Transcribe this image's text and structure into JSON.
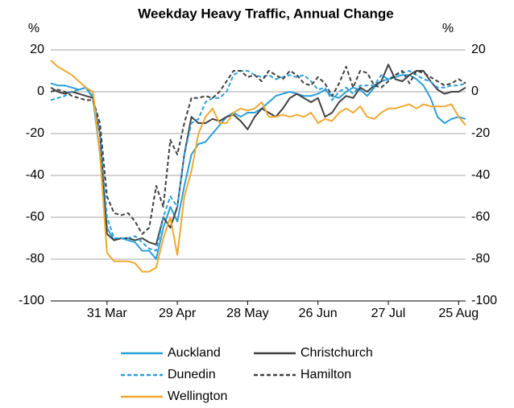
{
  "chart_data": {
    "type": "line",
    "title": "Weekday Heavy Traffic, Annual Change",
    "y_label": "%",
    "y2_label": "%",
    "categories": [
      null,
      null,
      null,
      null,
      null,
      null,
      null,
      null,
      "31 Mar",
      null,
      null,
      null,
      null,
      null,
      null,
      null,
      null,
      null,
      "29 Apr",
      null,
      null,
      null,
      null,
      null,
      null,
      null,
      null,
      null,
      "28 May",
      null,
      null,
      null,
      null,
      null,
      null,
      null,
      null,
      null,
      "26 Jun",
      null,
      null,
      null,
      null,
      null,
      null,
      null,
      null,
      null,
      "27 Jul",
      null,
      null,
      null,
      null,
      null,
      null,
      null,
      null,
      null,
      "25 Aug",
      null
    ],
    "series": [
      {
        "name": "Auckland",
        "color": "#2a9fd8",
        "dash": false,
        "values": [
          4,
          3,
          3,
          2,
          1,
          2,
          -3,
          -30,
          -65,
          -71,
          -70,
          -71,
          -72,
          -76,
          -76,
          -80,
          -65,
          -55,
          -62,
          -45,
          -30,
          -25,
          -24,
          -20,
          -16,
          -12,
          -10,
          -12,
          -10,
          -10,
          -8,
          -5,
          -2,
          -1,
          0,
          -1,
          -2,
          -2,
          -1,
          1,
          -2,
          -3,
          0,
          2,
          1,
          -2,
          2,
          5,
          6,
          7,
          8,
          8,
          6,
          3,
          -3,
          -12,
          -15,
          -13,
          -12,
          -13
        ]
      },
      {
        "name": "Christchurch",
        "color": "#404040",
        "dash": false,
        "values": [
          2,
          0,
          -1,
          0,
          -1,
          -2,
          -3,
          -20,
          -68,
          -71,
          -70,
          -70,
          -71,
          -70,
          -72,
          -73,
          -60,
          -65,
          -55,
          -30,
          -12,
          -15,
          -15,
          -13,
          -14,
          -12,
          -11,
          -14,
          -18,
          -12,
          -8,
          -10,
          -12,
          -8,
          -3,
          -1,
          -3,
          -5,
          -3,
          -12,
          -10,
          -5,
          -2,
          -3,
          2,
          0,
          3,
          5,
          13,
          6,
          5,
          8,
          10,
          10,
          5,
          1,
          -1,
          0,
          0,
          2
        ]
      },
      {
        "name": "Dunedin",
        "color": "#2a9fd8",
        "dash": true,
        "values": [
          -4,
          -3,
          -2,
          0,
          1,
          2,
          -2,
          -20,
          -60,
          -70,
          -70,
          -70,
          -69,
          -72,
          -75,
          -76,
          -60,
          -50,
          -55,
          -30,
          -15,
          -13,
          -5,
          -3,
          -3,
          0,
          8,
          10,
          10,
          8,
          7,
          8,
          6,
          7,
          8,
          7,
          8,
          5,
          1,
          2,
          -4,
          0,
          2,
          -1,
          3,
          3,
          3,
          8,
          6,
          8,
          9,
          10,
          8,
          6,
          5,
          2,
          2,
          3,
          3,
          4
        ]
      },
      {
        "name": "Hamilton",
        "color": "#404040",
        "dash": true,
        "values": [
          0,
          1,
          0,
          -2,
          -3,
          -4,
          -4,
          -15,
          -50,
          -58,
          -59,
          -58,
          -62,
          -68,
          -65,
          -45,
          -55,
          -23,
          -30,
          -15,
          -3,
          -3,
          -2,
          -3,
          0,
          5,
          10,
          10,
          7,
          8,
          5,
          10,
          8,
          6,
          10,
          8,
          4,
          3,
          7,
          4,
          -2,
          4,
          12,
          2,
          10,
          9,
          3,
          2,
          5,
          8,
          10,
          4,
          10,
          9,
          7,
          5,
          3,
          4,
          6,
          4
        ]
      },
      {
        "name": "Wellington",
        "color": "#f0a830",
        "dash": false,
        "values": [
          15,
          12,
          10,
          8,
          5,
          2,
          0,
          -30,
          -77,
          -81,
          -81,
          -81,
          -82,
          -86,
          -86,
          -84,
          -70,
          -60,
          -78,
          -50,
          -38,
          -20,
          -12,
          -8,
          -15,
          -15,
          -10,
          -8,
          -9,
          -8,
          -5,
          -12,
          -12,
          -11,
          -12,
          -11,
          -12,
          -10,
          -15,
          -13,
          -14,
          -10,
          -8,
          -10,
          -7,
          -12,
          -13,
          -10,
          -8,
          -8,
          -7,
          -6,
          -8,
          -6,
          -7,
          -7,
          -7,
          -6,
          -12,
          -16
        ]
      }
    ],
    "ylim": [
      -100,
      20
    ],
    "yticks": [
      20,
      0,
      -20,
      -40,
      -60,
      -80,
      -100
    ],
    "y2lim": [
      -100,
      20
    ],
    "y2ticks": [
      20,
      0,
      -20,
      -40,
      -60,
      -80,
      -100
    ],
    "grid": true,
    "legend": "bottom"
  }
}
